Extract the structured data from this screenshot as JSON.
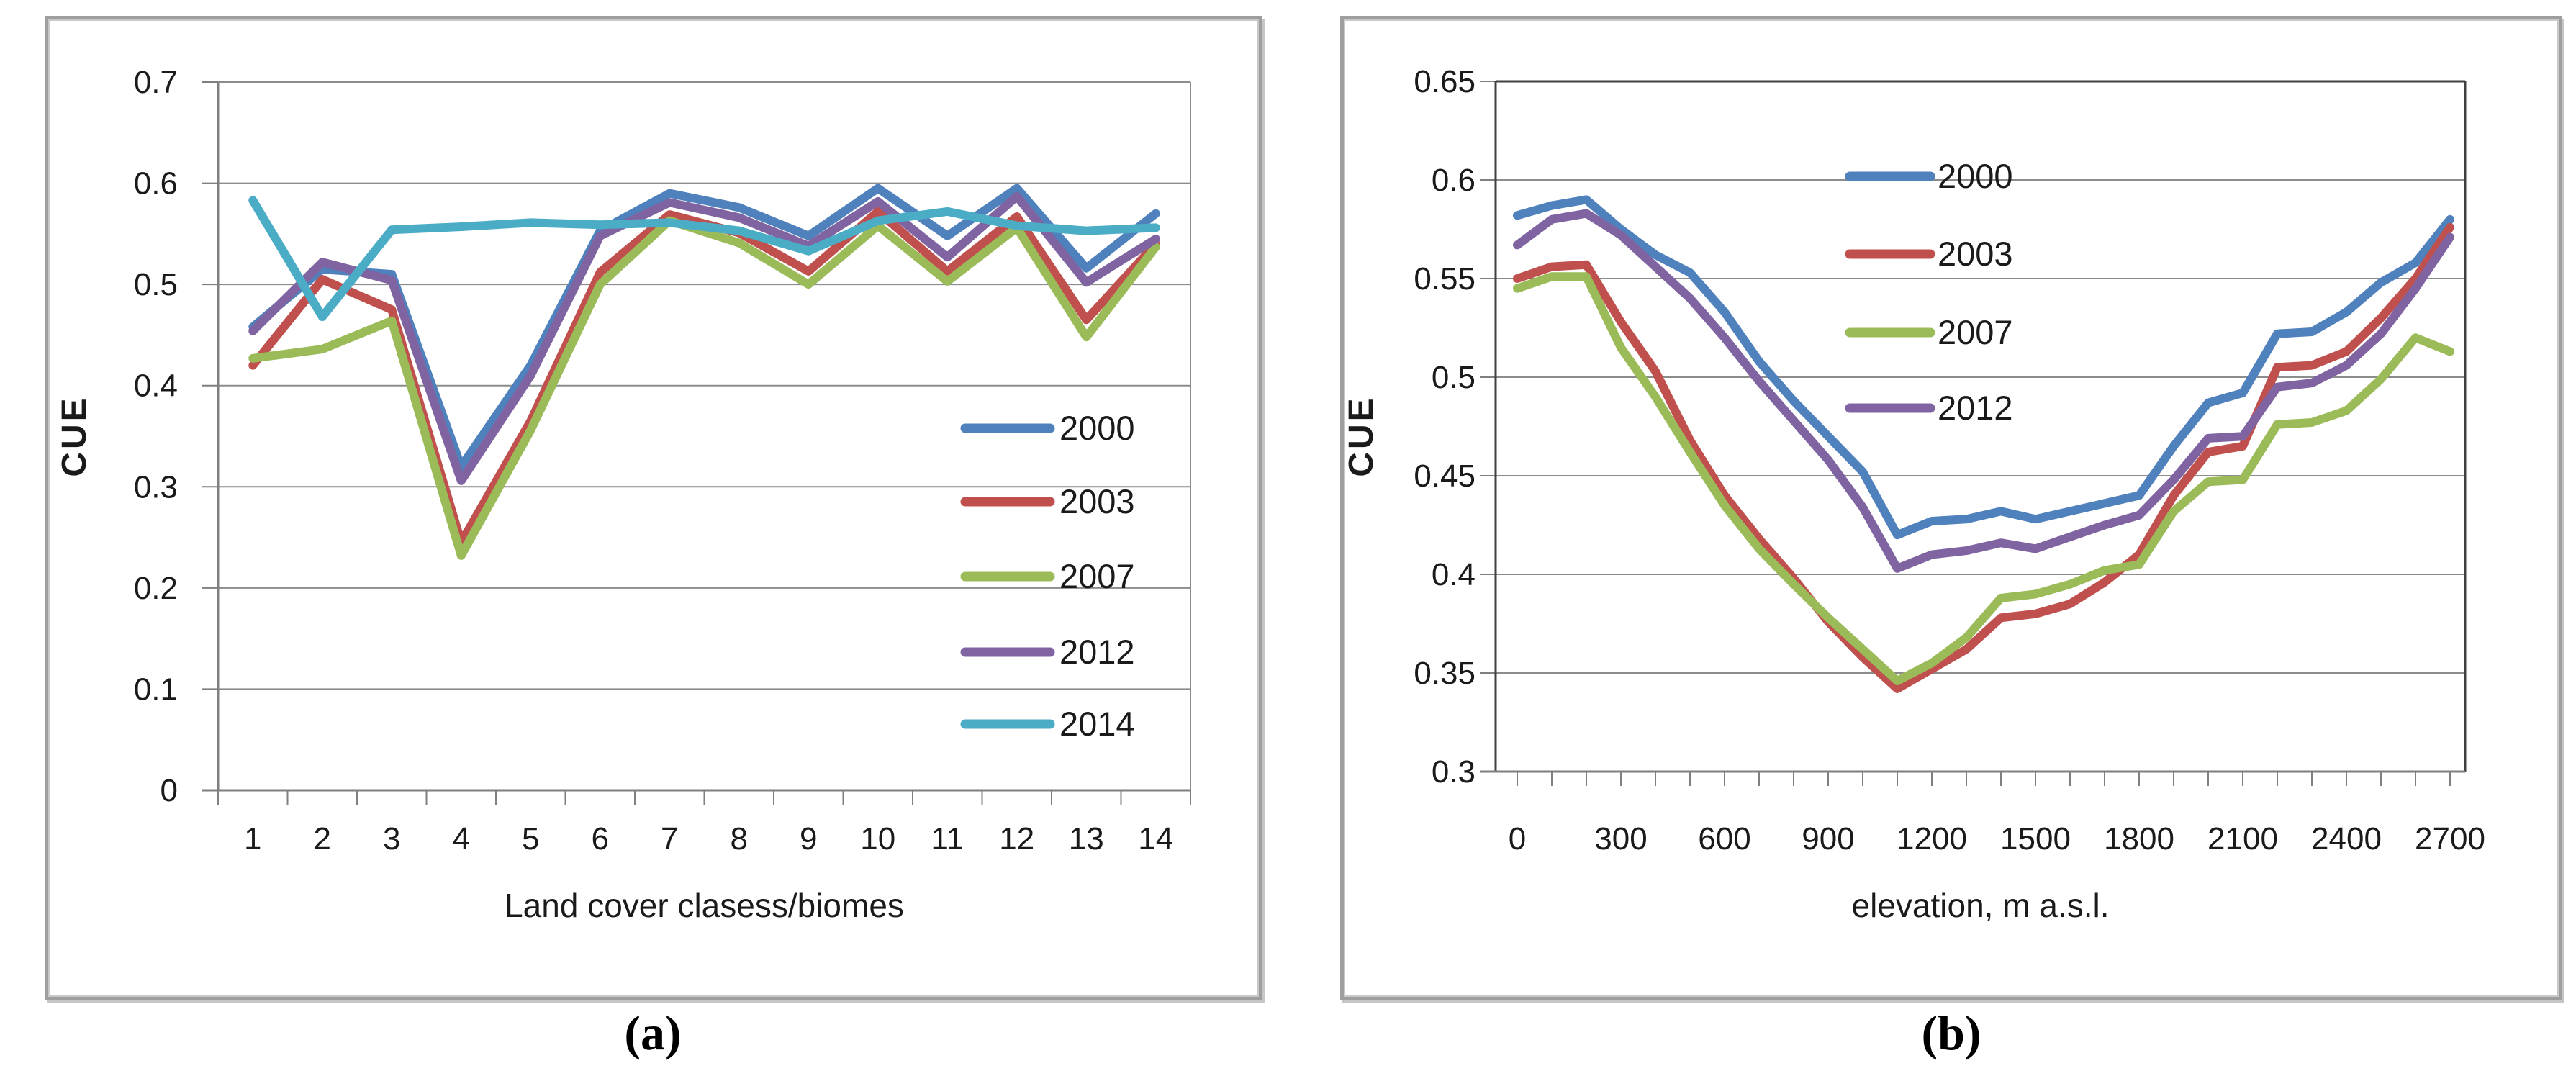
{
  "captions": {
    "a": "(a)",
    "b": "(b)"
  },
  "colors": {
    "s2000": "#4F81BD",
    "s2003": "#C0504D",
    "s2007": "#9BBB59",
    "s2012": "#8064A2",
    "s2014": "#4BACC6",
    "gridline": "#8C8C8C",
    "axis": "#7F7F7F",
    "axis_dark": "#404040",
    "text": "#1A1A1A"
  },
  "chart_data": [
    {
      "id": "panel-a",
      "type": "line",
      "title": "",
      "ylabel": "CUE",
      "xlabel": "Land cover clasess/biomes",
      "ylim": [
        0,
        0.7
      ],
      "yticks": [
        0,
        0.1,
        0.2,
        0.3,
        0.4,
        0.5,
        0.6,
        0.7
      ],
      "ytick_labels": [
        "0",
        "0.1",
        "0.2",
        "0.3",
        "0.4",
        "0.5",
        "0.6",
        "0.7"
      ],
      "categories": [
        "1",
        "2",
        "3",
        "4",
        "5",
        "6",
        "7",
        "8",
        "9",
        "10",
        "11",
        "12",
        "13",
        "14"
      ],
      "grid": "horizontal",
      "legend_position": "inside-right",
      "series": [
        {
          "name": "2000",
          "color": "s2000",
          "values": [
            0.458,
            0.515,
            0.51,
            0.32,
            0.42,
            0.553,
            0.59,
            0.576,
            0.548,
            0.595,
            0.548,
            0.595,
            0.516,
            0.57
          ]
        },
        {
          "name": "2003",
          "color": "s2003",
          "values": [
            0.42,
            0.505,
            0.475,
            0.245,
            0.365,
            0.512,
            0.569,
            0.551,
            0.513,
            0.572,
            0.513,
            0.567,
            0.465,
            0.54
          ]
        },
        {
          "name": "2007",
          "color": "s2007",
          "values": [
            0.427,
            0.436,
            0.464,
            0.232,
            0.356,
            0.5,
            0.563,
            0.541,
            0.5,
            0.558,
            0.503,
            0.556,
            0.448,
            0.537
          ]
        },
        {
          "name": "2012",
          "color": "s2012",
          "values": [
            0.454,
            0.522,
            0.504,
            0.306,
            0.41,
            0.548,
            0.581,
            0.566,
            0.538,
            0.582,
            0.527,
            0.587,
            0.502,
            0.545
          ]
        },
        {
          "name": "2014",
          "color": "s2014",
          "values": [
            0.583,
            0.468,
            0.554,
            0.557,
            0.561,
            0.559,
            0.561,
            0.553,
            0.533,
            0.563,
            0.572,
            0.558,
            0.553,
            0.556
          ]
        }
      ]
    },
    {
      "id": "panel-b",
      "type": "line",
      "title": "",
      "ylabel": "CUE",
      "xlabel": "elevation, m a.s.l.",
      "ylim": [
        0.3,
        0.65
      ],
      "yticks": [
        0.3,
        0.35,
        0.4,
        0.45,
        0.5,
        0.55,
        0.6,
        0.65
      ],
      "ytick_labels": [
        "0.3",
        "0.35",
        "0.4",
        "0.45",
        "0.5",
        "0.55",
        "0.6",
        "0.65"
      ],
      "xlim": [
        0,
        2700
      ],
      "x": [
        0,
        100,
        200,
        300,
        400,
        500,
        600,
        700,
        800,
        900,
        1000,
        1100,
        1200,
        1300,
        1400,
        1500,
        1600,
        1700,
        1800,
        1900,
        2000,
        2100,
        2200,
        2300,
        2400,
        2500,
        2600,
        2700
      ],
      "xtick_values": [
        0,
        300,
        600,
        900,
        1200,
        1500,
        1800,
        2100,
        2400,
        2700
      ],
      "xtick_labels": [
        "0",
        "300",
        "600",
        "900",
        "1200",
        "1500",
        "1800",
        "2100",
        "2400",
        "2700"
      ],
      "minor_tick_step": 100,
      "grid": "horizontal",
      "legend_position": "inside-top-middle",
      "series": [
        {
          "name": "2000",
          "color": "s2000",
          "values": [
            0.582,
            0.587,
            0.59,
            0.575,
            0.562,
            0.553,
            0.533,
            0.508,
            0.488,
            0.47,
            0.452,
            0.42,
            0.427,
            0.428,
            0.432,
            0.428,
            0.432,
            0.436,
            0.44,
            0.465,
            0.487,
            0.492,
            0.522,
            0.523,
            0.533,
            0.548,
            0.558,
            0.58
          ]
        },
        {
          "name": "2003",
          "color": "s2003",
          "values": [
            0.55,
            0.556,
            0.557,
            0.528,
            0.503,
            0.468,
            0.44,
            0.418,
            0.398,
            0.376,
            0.358,
            0.342,
            0.352,
            0.362,
            0.378,
            0.38,
            0.385,
            0.396,
            0.41,
            0.44,
            0.462,
            0.465,
            0.505,
            0.506,
            0.513,
            0.53,
            0.55,
            0.576
          ]
        },
        {
          "name": "2007",
          "color": "s2007",
          "values": [
            0.545,
            0.551,
            0.551,
            0.515,
            0.49,
            0.462,
            0.435,
            0.413,
            0.395,
            0.378,
            0.362,
            0.346,
            0.355,
            0.368,
            0.388,
            0.39,
            0.395,
            0.402,
            0.405,
            0.432,
            0.447,
            0.448,
            0.476,
            0.477,
            0.483,
            0.499,
            0.52,
            0.513
          ]
        },
        {
          "name": "2012",
          "color": "s2012",
          "values": [
            0.567,
            0.58,
            0.583,
            0.572,
            0.556,
            0.54,
            0.52,
            0.498,
            0.478,
            0.458,
            0.434,
            0.403,
            0.41,
            0.412,
            0.416,
            0.413,
            0.419,
            0.425,
            0.43,
            0.448,
            0.469,
            0.47,
            0.495,
            0.497,
            0.506,
            0.522,
            0.545,
            0.571
          ]
        }
      ]
    }
  ]
}
